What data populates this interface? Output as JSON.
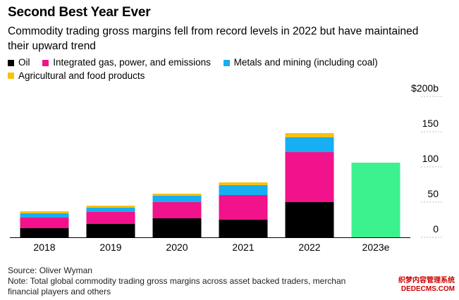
{
  "title": "Second Best Year Ever",
  "subtitle": "Commodity trading gross margins fell from record levels in 2022 but have maintained their upward trend",
  "legend": [
    {
      "label": "Oil",
      "color": "#000000"
    },
    {
      "label": "Integrated gas, power, and emissions",
      "color": "#f2128b"
    },
    {
      "label": "Metals and mining (including coal)",
      "color": "#17aef2"
    },
    {
      "label": "Agricultural and food products",
      "color": "#f5c211"
    }
  ],
  "source": "Source: Oliver Wyman",
  "note": "Note: Total global commodity trading gross margins across asset backed traders, merchan",
  "note_line2": "financial players and others",
  "watermark": {
    "line1": "织梦内容管理系统",
    "line2": "DEDECMS.COM"
  },
  "chart_data": {
    "type": "bar",
    "stacked": true,
    "categories": [
      "2018",
      "2019",
      "2020",
      "2021",
      "2022",
      "2023e"
    ],
    "series": [
      {
        "name": "Oil",
        "color": "#000000",
        "values": [
          13,
          19,
          27,
          25,
          50,
          null
        ]
      },
      {
        "name": "Integrated gas, power, and emissions",
        "color": "#f2128b",
        "values": [
          15,
          17,
          23,
          35,
          71,
          null
        ]
      },
      {
        "name": "Metals and mining (including coal)",
        "color": "#17aef2",
        "values": [
          6,
          6,
          9,
          14,
          21,
          null
        ]
      },
      {
        "name": "Agricultural and food products",
        "color": "#f5c211",
        "values": [
          3,
          3,
          3,
          4,
          6,
          null
        ]
      }
    ],
    "estimate": {
      "category": "2023e",
      "value": 106,
      "color": "#3cf28e"
    },
    "ylim": [
      0,
      200
    ],
    "yticks": [
      0,
      50,
      100,
      150,
      200
    ],
    "ytick_labels": [
      "0",
      "50",
      "100",
      "150",
      "$200b"
    ],
    "grid": true,
    "legend_position": "top-left"
  }
}
